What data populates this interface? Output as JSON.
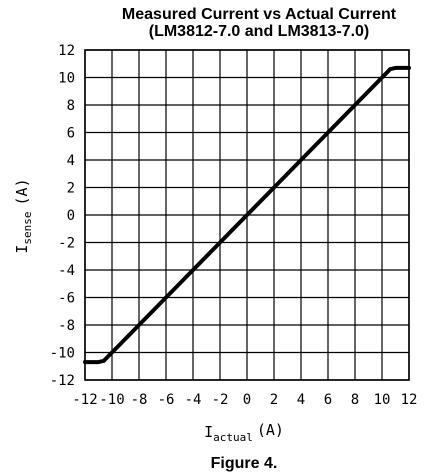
{
  "chart_data": {
    "type": "line",
    "title_line1": "Measured Current vs Actual Current",
    "title_line2": "(LM3812-7.0 and LM3813-7.0)",
    "xlabel_main": "I",
    "xlabel_sub": "actual",
    "xlabel_unit": "(A)",
    "ylabel_main": "I",
    "ylabel_sub": "sense",
    "ylabel_unit": "(A)",
    "xlim": [
      -12,
      12
    ],
    "ylim": [
      -12,
      12
    ],
    "x_ticks": [
      -12,
      -10,
      -8,
      -6,
      -4,
      -2,
      0,
      2,
      4,
      6,
      8,
      10,
      12
    ],
    "x_tick_labels": [
      "-12",
      "-10",
      "-8",
      "-6",
      "-4",
      "-2",
      "0",
      "2",
      "4",
      "6",
      "8",
      "10",
      "12"
    ],
    "y_ticks": [
      12,
      10,
      8,
      6,
      4,
      2,
      0,
      -2,
      -4,
      -6,
      -8,
      -10,
      -12
    ],
    "y_tick_labels": [
      "12",
      "10",
      "8",
      "6",
      "4",
      "2",
      "0",
      "-2",
      "-4",
      "-6",
      "-8",
      "-10",
      "-12"
    ],
    "grid": true,
    "series": [
      {
        "x": [
          -12,
          -11,
          -10.6,
          -10.3,
          -10,
          -8,
          -6,
          -4,
          -2,
          0,
          2,
          4,
          6,
          8,
          10,
          10.3,
          10.6,
          11,
          12
        ],
        "y": [
          -10.7,
          -10.7,
          -10.6,
          -10.3,
          -10,
          -8,
          -6,
          -4,
          -2,
          0,
          2,
          4,
          6,
          8,
          10,
          10.3,
          10.6,
          10.7,
          10.7
        ]
      }
    ]
  },
  "caption": "Figure 4."
}
